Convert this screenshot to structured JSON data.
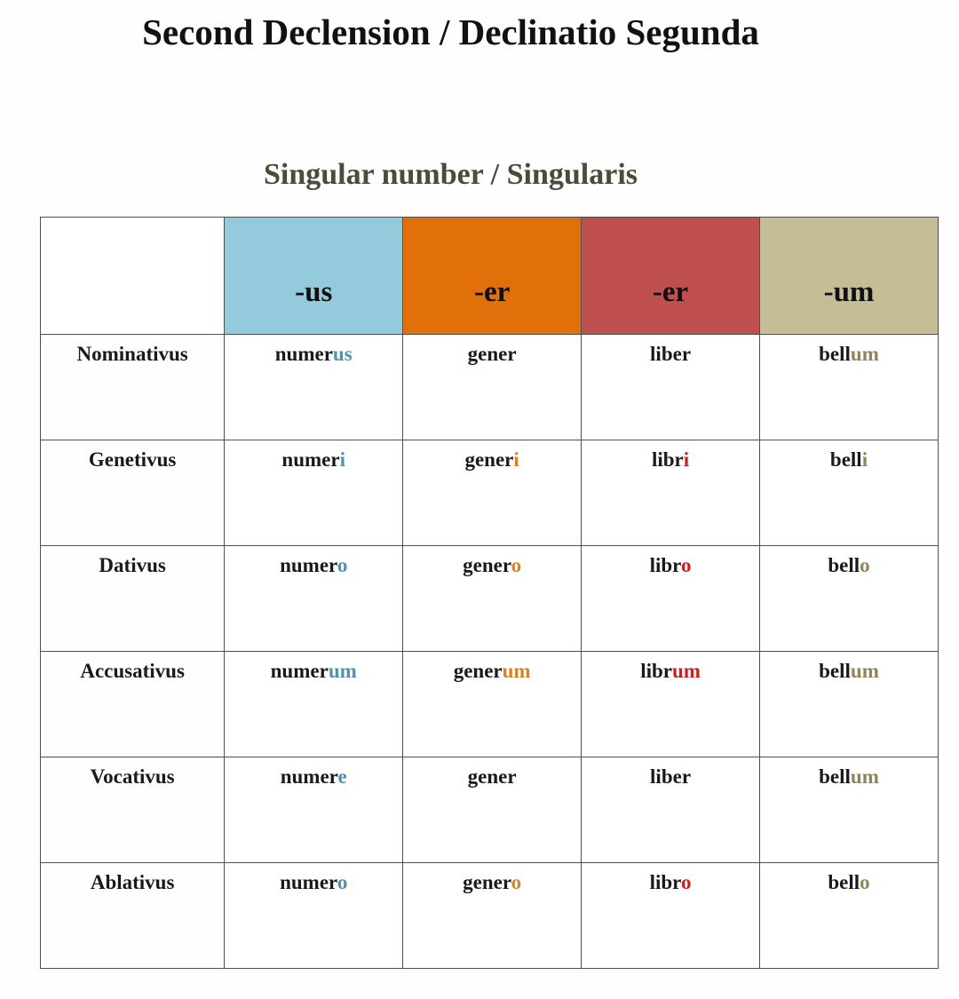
{
  "title": "Second Declension / Declinatio Segunda",
  "subtitle": "Singular number / Singularis",
  "colors": {
    "title_text": "#111111",
    "subtitle_text": "#4c4a3a",
    "stem_text": "#1a1a1a",
    "border": "#4f4f4f",
    "page_background": "#fefefe"
  },
  "table": {
    "corner_label": "",
    "columns": [
      {
        "ending_label": "-us",
        "header_bg": "#93cbdc",
        "ending_text_color": "#4e93ad"
      },
      {
        "ending_label": "-er",
        "header_bg": "#e1700b",
        "ending_text_color": "#d9821f"
      },
      {
        "ending_label": "-er",
        "header_bg": "#c05050",
        "ending_text_color": "#cc2020"
      },
      {
        "ending_label": "-um",
        "header_bg": "#c5bd96",
        "ending_text_color": "#8e8659"
      }
    ],
    "rows": [
      {
        "case": "Nominativus",
        "words": [
          {
            "stem": "numer",
            "ending": "us"
          },
          {
            "stem": "gener",
            "ending": ""
          },
          {
            "stem": "liber",
            "ending": ""
          },
          {
            "stem": "bell",
            "ending": "um"
          }
        ]
      },
      {
        "case": "Genetivus",
        "words": [
          {
            "stem": "numer",
            "ending": "i"
          },
          {
            "stem": "gener",
            "ending": "i"
          },
          {
            "stem": "libr",
            "ending": "i"
          },
          {
            "stem": "bell",
            "ending": "i"
          }
        ]
      },
      {
        "case": "Dativus",
        "words": [
          {
            "stem": "numer",
            "ending": "o"
          },
          {
            "stem": "gener",
            "ending": "o"
          },
          {
            "stem": "libr",
            "ending": "o"
          },
          {
            "stem": "bell",
            "ending": "o"
          }
        ]
      },
      {
        "case": "Accusativus",
        "words": [
          {
            "stem": "numer",
            "ending": "um"
          },
          {
            "stem": "gener",
            "ending": "um"
          },
          {
            "stem": "libr",
            "ending": "um"
          },
          {
            "stem": "bell",
            "ending": "um"
          }
        ]
      },
      {
        "case": "Vocativus",
        "words": [
          {
            "stem": "numer",
            "ending": "e"
          },
          {
            "stem": "gener",
            "ending": ""
          },
          {
            "stem": "liber",
            "ending": ""
          },
          {
            "stem": "bell",
            "ending": "um"
          }
        ]
      },
      {
        "case": "Ablativus",
        "words": [
          {
            "stem": "numer",
            "ending": "o"
          },
          {
            "stem": "gener",
            "ending": "o"
          },
          {
            "stem": "libr",
            "ending": "o"
          },
          {
            "stem": "bell",
            "ending": "o"
          }
        ]
      }
    ]
  }
}
